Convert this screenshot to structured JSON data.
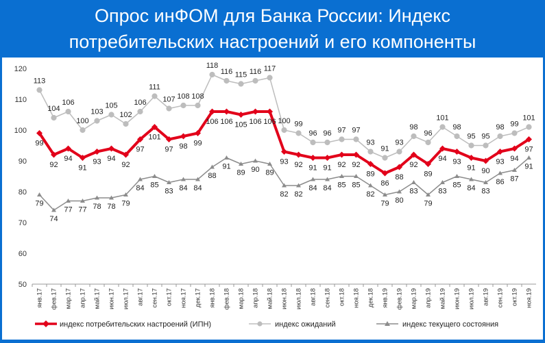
{
  "header": {
    "title_line1": "Опрос инФОМ для Банка России: Индекс",
    "title_line2": "потребительских настроений и его компоненты"
  },
  "colors": {
    "background": "#0a6fd1",
    "ipn": "#e2001a",
    "expectations": "#bdbdbd",
    "current": "#8c8c8c"
  },
  "chart_data": {
    "type": "line",
    "title": "",
    "xlabel": "",
    "ylabel": "",
    "ylim": [
      50,
      120
    ],
    "yticks": [
      50,
      60,
      70,
      80,
      90,
      100,
      110,
      120
    ],
    "grid": false,
    "legend_position": "bottom",
    "categories": [
      "янв.17",
      "фев.17",
      "мар.17",
      "апр.17",
      "май.17",
      "июн.17",
      "июл.17",
      "авг.17",
      "сен.17",
      "окт.17",
      "ноя.17",
      "дек.17",
      "янв.18",
      "фев.18",
      "мар.18",
      "апр.18",
      "май.18",
      "июн.18",
      "июл.18",
      "авг.18",
      "сен.18",
      "окт.18",
      "ноя.18",
      "дек.18",
      "янв.19",
      "фев.19",
      "мар.19",
      "апр.19",
      "май.19",
      "июн.19",
      "июл.19",
      "авг.19",
      "сен.19",
      "окт.19",
      "ноя.19"
    ],
    "series": [
      {
        "name": "индекс потребительских настроений (ИПН)",
        "key": "ipn",
        "values": [
          99,
          92,
          94,
          91,
          93,
          94,
          92,
          97,
          101,
          97,
          98,
          99,
          106,
          106,
          105,
          106,
          106,
          93,
          92,
          91,
          91,
          92,
          92,
          89,
          86,
          88,
          92,
          89,
          94,
          93,
          91,
          90,
          93,
          94,
          97
        ]
      },
      {
        "name": "индекс ожиданий",
        "key": "expectations",
        "values": [
          113,
          104,
          106,
          100,
          103,
          105,
          102,
          106,
          111,
          107,
          108,
          108,
          118,
          116,
          115,
          116,
          117,
          100,
          99,
          96,
          96,
          97,
          97,
          93,
          91,
          93,
          98,
          96,
          101,
          98,
          95,
          95,
          98,
          99,
          101
        ]
      },
      {
        "name": "индекс текущего состояния",
        "key": "current",
        "values": [
          79,
          74,
          77,
          77,
          78,
          78,
          79,
          84,
          85,
          83,
          84,
          84,
          88,
          91,
          89,
          90,
          89,
          82,
          82,
          84,
          84,
          85,
          85,
          82,
          79,
          80,
          83,
          79,
          83,
          85,
          84,
          83,
          86,
          87,
          91
        ]
      }
    ]
  }
}
